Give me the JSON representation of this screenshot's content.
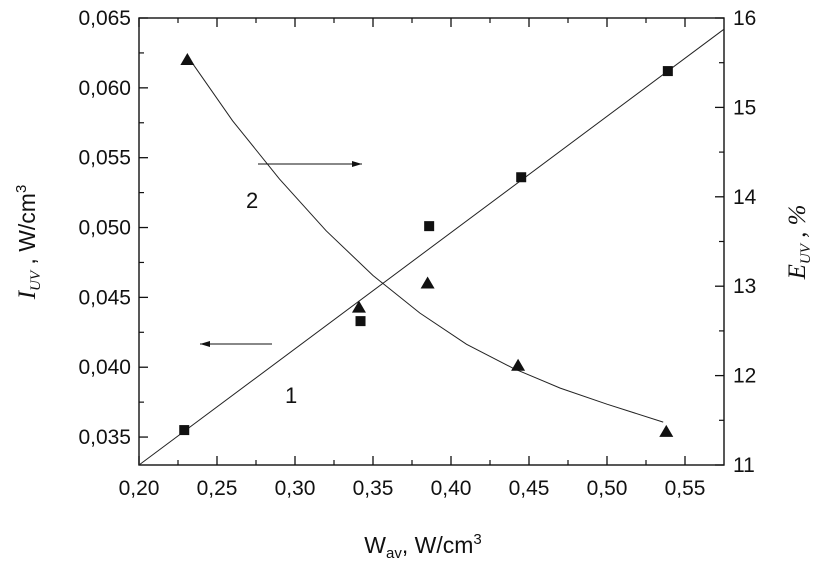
{
  "chart_data": {
    "type": "scatter",
    "x_axis": {
      "label_main": "W",
      "label_sub": "av",
      "label_rest": ", W/cm",
      "label_sup": "3",
      "range": [
        0.2,
        0.575
      ],
      "ticks": [
        0.2,
        0.25,
        0.3,
        0.35,
        0.4,
        0.45,
        0.5,
        0.55
      ],
      "tick_labels": [
        "0,20",
        "0,25",
        "0,30",
        "0,35",
        "0,40",
        "0,45",
        "0,50",
        "0,55"
      ]
    },
    "y_left_axis": {
      "label_main": "I",
      "label_sub": "UV",
      "label_rest": " , W/cm",
      "label_sup": "3",
      "range": [
        0.033,
        0.065
      ],
      "ticks": [
        0.035,
        0.04,
        0.045,
        0.05,
        0.055,
        0.06,
        0.065
      ],
      "tick_labels": [
        "0,035",
        "0,040",
        "0,045",
        "0,050",
        "0,055",
        "0,060",
        "0,065"
      ]
    },
    "y_right_axis": {
      "label_main": "E",
      "label_sub": "UV",
      "label_rest": " , %",
      "range": [
        11,
        16
      ],
      "ticks": [
        11,
        12,
        13,
        14,
        15,
        16
      ],
      "tick_labels": [
        "11",
        "12",
        "13",
        "14",
        "15",
        "16"
      ]
    },
    "series": [
      {
        "label": "1",
        "axis": "left",
        "marker": "square",
        "points": [
          {
            "x": 0.229,
            "y": 0.0355
          },
          {
            "x": 0.342,
            "y": 0.0433
          },
          {
            "x": 0.386,
            "y": 0.0501
          },
          {
            "x": 0.445,
            "y": 0.0536
          },
          {
            "x": 0.539,
            "y": 0.0612
          }
        ],
        "fit_line": {
          "x": [
            0.2,
            0.575
          ],
          "y": [
            0.033,
            0.0642
          ]
        }
      },
      {
        "label": "2",
        "axis": "right",
        "marker": "triangle",
        "points": [
          {
            "x": 0.231,
            "y": 15.53
          },
          {
            "x": 0.341,
            "y": 12.76
          },
          {
            "x": 0.385,
            "y": 13.03
          },
          {
            "x": 0.443,
            "y": 12.11
          },
          {
            "x": 0.538,
            "y": 11.37
          }
        ],
        "fit_curve": {
          "x": [
            0.232,
            0.26,
            0.29,
            0.32,
            0.35,
            0.38,
            0.41,
            0.44,
            0.47,
            0.5,
            0.536
          ],
          "y": [
            15.55,
            14.85,
            14.2,
            13.62,
            13.12,
            12.7,
            12.35,
            12.08,
            11.86,
            11.68,
            11.48
          ]
        }
      }
    ],
    "annotations": {
      "label_1": "1",
      "label_2": "2"
    }
  }
}
